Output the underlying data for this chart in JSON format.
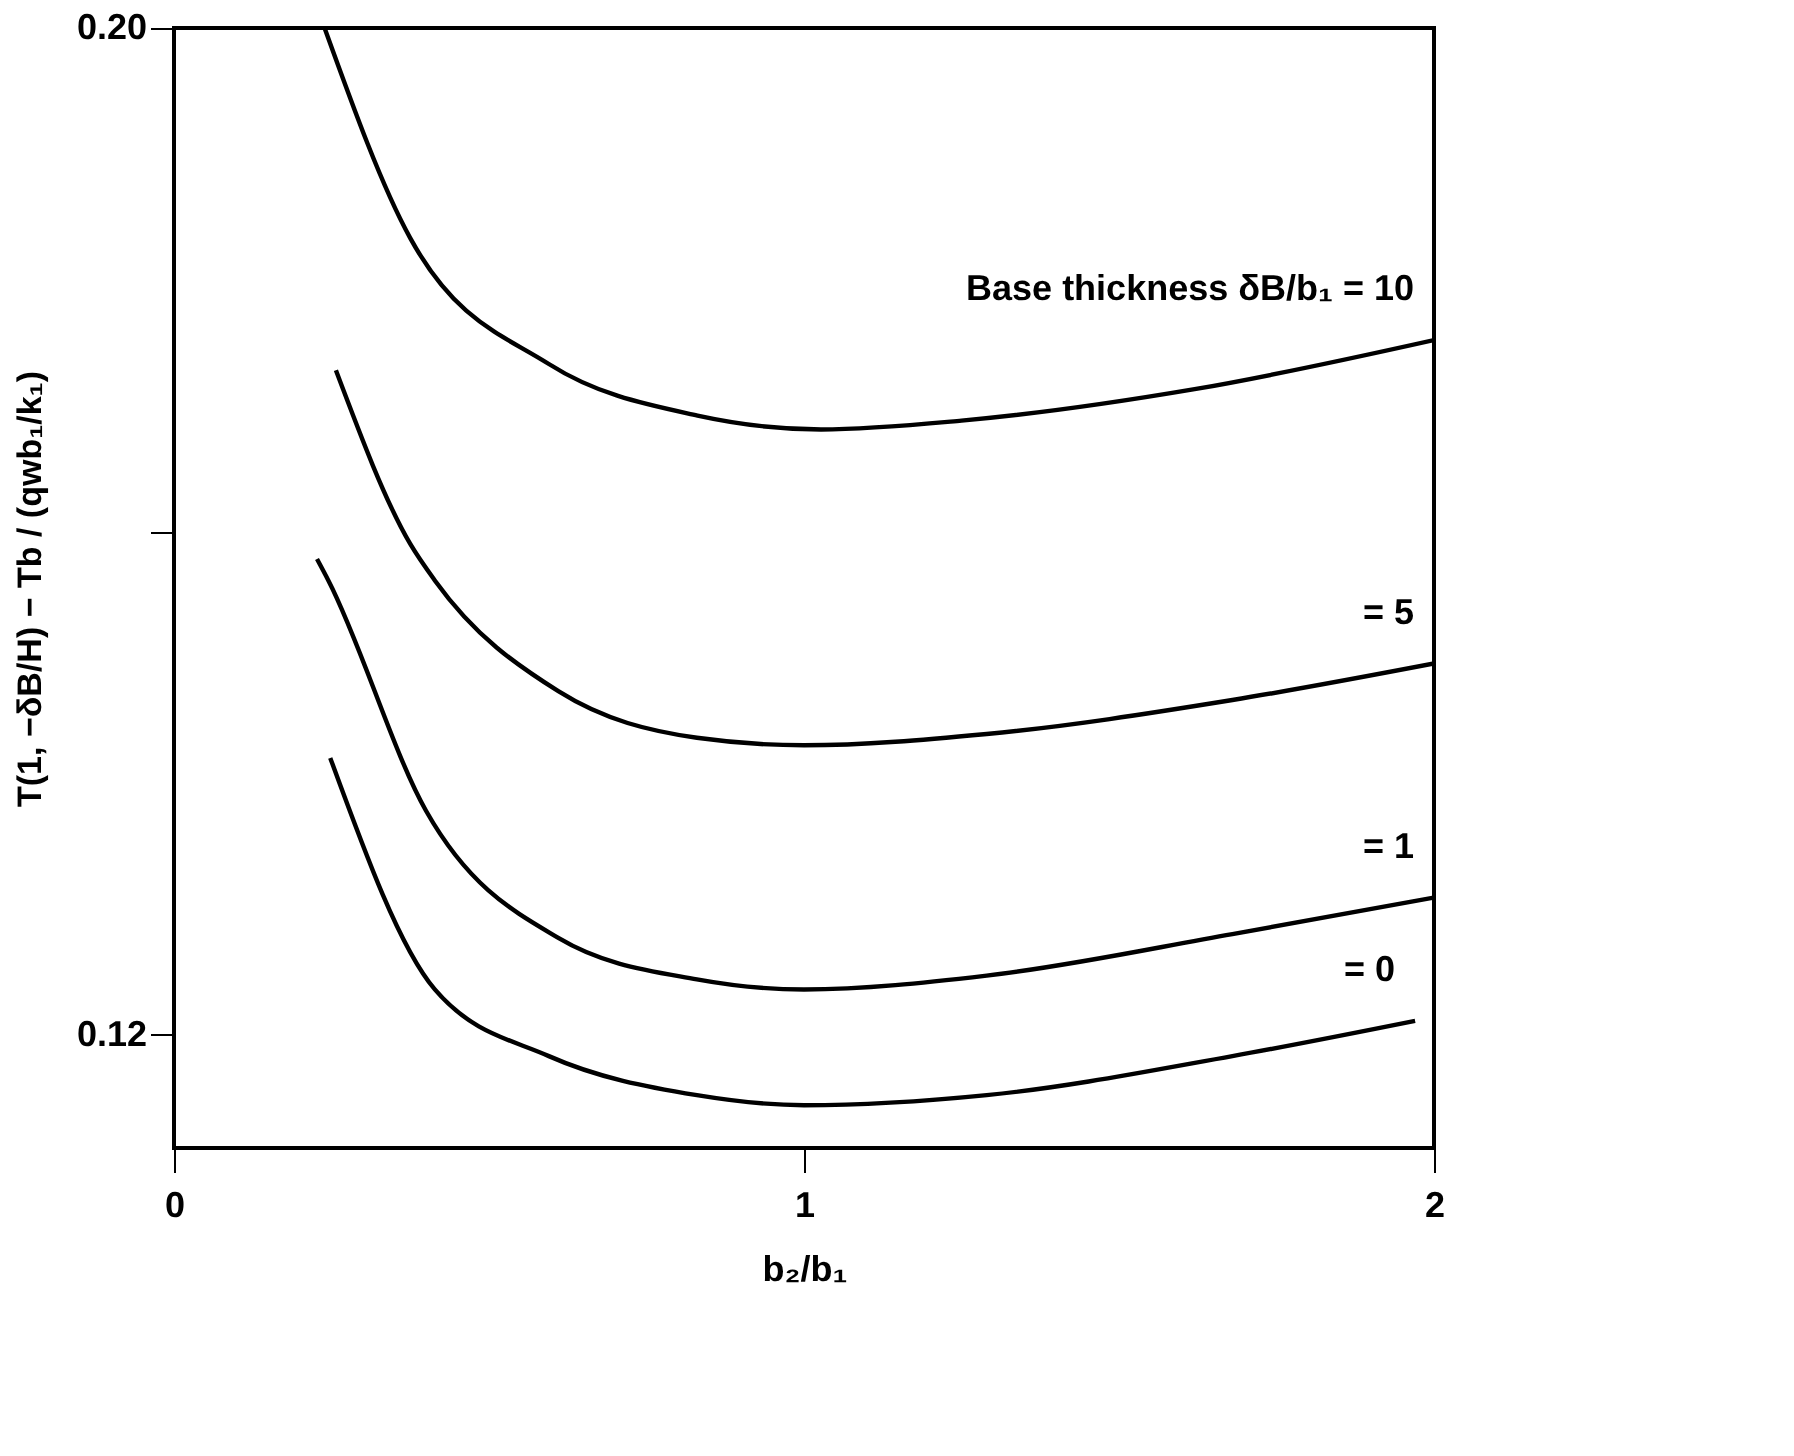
{
  "chart_data": {
    "type": "line",
    "xlabel": "b₂/b₁",
    "ylabel": "T(1, −δB/H) − Tb / (qwb₁/k₁)",
    "xlim": [
      0,
      2
    ],
    "xticks": [
      0,
      1,
      2
    ],
    "ylim": [
      0.111,
      0.2
    ],
    "yticks": [
      {
        "value": 0.2,
        "label": "0.20"
      },
      {
        "value": 0.16,
        "label": null
      },
      {
        "value": 0.12,
        "label": "0.12"
      }
    ],
    "grid": false,
    "marker": "none",
    "line_style": "solid",
    "series": [
      {
        "name": "Base thickness δB/b₁ = 10",
        "color": "#000000",
        "x": [
          0.239,
          0.375,
          0.595,
          0.831,
          1.027,
          1.25,
          1.62,
          2.0
        ],
        "values": [
          0.2,
          0.1833,
          0.1733,
          0.1692,
          0.1681,
          0.1688,
          0.1713,
          0.1752
        ]
      },
      {
        "name": "=  5",
        "color": "#000000",
        "x": [
          0.257,
          0.375,
          0.414,
          0.61,
          0.83,
          1.0,
          1.29,
          1.68,
          2.0
        ],
        "values": [
          0.1728,
          0.159,
          0.1561,
          0.1473,
          0.1436,
          0.143,
          0.1439,
          0.1466,
          0.1495
        ]
      },
      {
        "name": "=  1",
        "color": "#000000",
        "x": [
          0.227,
          0.245,
          0.4,
          0.61,
          0.83,
          1.0,
          1.29,
          1.68,
          2.0
        ],
        "values": [
          0.1578,
          0.1561,
          0.1378,
          0.1277,
          0.1244,
          0.1236,
          0.1247,
          0.128,
          0.1309
        ]
      },
      {
        "name": "=  0",
        "color": "#000000",
        "x": [
          0.248,
          0.414,
          0.595,
          0.83,
          1.0,
          1.29,
          1.68,
          1.97
        ],
        "values": [
          0.142,
          0.1236,
          0.1183,
          0.1152,
          0.1144,
          0.1152,
          0.1183,
          0.1211
        ]
      }
    ]
  }
}
